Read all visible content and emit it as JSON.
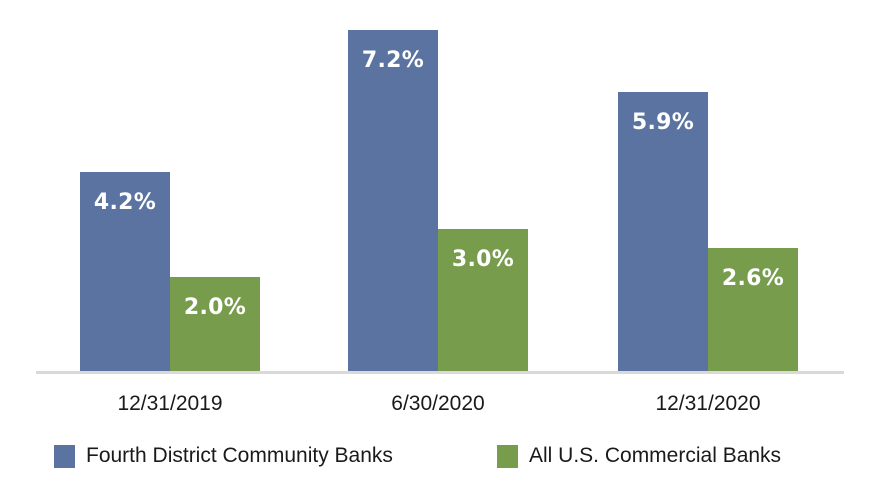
{
  "chart_data": {
    "type": "bar",
    "title": "",
    "xlabel": "",
    "ylabel": "",
    "categories": [
      "12/31/2019",
      "6/30/2020",
      "12/31/2020"
    ],
    "series": [
      {
        "name": "Fourth District Community Banks",
        "color": "#5a73a0",
        "values": [
          4.2,
          7.2,
          5.9
        ],
        "labels": [
          "4.2%",
          "7.2%",
          "5.9%"
        ]
      },
      {
        "name": "All U.S. Commercial Banks",
        "color": "#779c4b",
        "values": [
          2.0,
          3.0,
          2.6
        ],
        "labels": [
          "2.0%",
          "3.0%",
          "2.6%"
        ]
      }
    ],
    "ylim": [
      0,
      7.8
    ],
    "grid": false,
    "legend_position": "bottom",
    "value_format": "percent, one decimal",
    "data_labels": "inside top of bar, white bold"
  },
  "colors": {
    "district": "#5a73a0",
    "us": "#779c4b",
    "baseline": "#d9d9d9",
    "text": "#1a1a1a"
  },
  "legend": {
    "items": [
      {
        "label": "Fourth District Community Banks",
        "color": "#5a73a0"
      },
      {
        "label": "All U.S. Commercial Banks",
        "color": "#779c4b"
      }
    ]
  }
}
